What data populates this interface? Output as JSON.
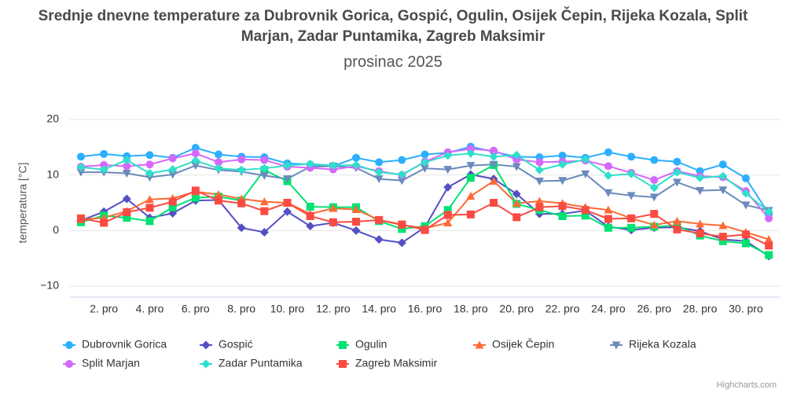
{
  "chart_data": {
    "type": "line",
    "title": "Srednje dnevne temperature za Dubrovnik Gorica, Gospić, Ogulin, Osijek Čepin, Rijeka Kozala, Split Marjan, Zadar Puntamika, Zagreb Maksimir",
    "subtitle": "prosinac 2025",
    "y_label": "temperatura [°C]",
    "credits": "Highcharts.com",
    "categories": [
      null,
      "2. pro",
      null,
      "4. pro",
      null,
      "6. pro",
      null,
      "8. pro",
      null,
      "10. pro",
      null,
      "12. pro",
      null,
      "14. pro",
      null,
      "16. pro",
      null,
      "18. pro",
      null,
      "20. pro",
      null,
      "22. pro",
      null,
      "24. pro",
      null,
      "26. pro",
      null,
      "28. pro",
      null,
      "30. pro",
      null
    ],
    "ylim": [
      -10,
      20
    ],
    "yticks": [
      {
        "value": -10,
        "label": "−10"
      },
      0,
      10,
      20
    ],
    "grid": true,
    "legend": "bottom",
    "series": [
      {
        "name": "Dubrovnik Gorica",
        "color": "#2caffe",
        "marker": "circle",
        "values": [
          13.3,
          13.8,
          13.4,
          13.6,
          13.1,
          14.9,
          13.7,
          13.3,
          13.2,
          12.1,
          11.9,
          11.6,
          13.1,
          12.3,
          12.7,
          13.7,
          14.0,
          15.1,
          14.2,
          13.3,
          13.2,
          13.5,
          13.1,
          14.1,
          13.3,
          12.7,
          12.4,
          10.7,
          11.9,
          9.4,
          3.0
        ]
      },
      {
        "name": "Gospić",
        "color": "#544fc5",
        "marker": "diamond",
        "values": [
          1.8,
          3.4,
          5.7,
          2.3,
          3.1,
          5.4,
          5.5,
          0.5,
          -0.3,
          3.4,
          0.8,
          1.4,
          0.0,
          -1.6,
          -2.2,
          0.6,
          7.8,
          10.1,
          9.3,
          6.6,
          3.0,
          3.0,
          3.6,
          0.7,
          0.1,
          0.5,
          0.6,
          -0.1,
          -1.6,
          -1.9,
          -4.6
        ]
      },
      {
        "name": "Ogulin",
        "color": "#00e272",
        "marker": "square",
        "values": [
          1.5,
          2.7,
          2.3,
          1.7,
          4.2,
          5.9,
          6.1,
          5.4,
          10.9,
          8.9,
          4.3,
          4.2,
          4.2,
          1.7,
          0.3,
          0.8,
          3.7,
          9.5,
          11.8,
          4.8,
          3.7,
          2.6,
          2.7,
          0.5,
          0.5,
          0.7,
          0.9,
          -0.9,
          -1.9,
          -2.3,
          -4.4
        ]
      },
      {
        "name": "Osijek Čepin",
        "color": "#fe6a35",
        "marker": "triangle",
        "values": [
          2.0,
          2.3,
          3.5,
          5.6,
          5.8,
          7.0,
          6.5,
          5.7,
          5.2,
          5.0,
          3.0,
          4.0,
          3.8,
          1.9,
          1.0,
          0.4,
          1.4,
          6.2,
          8.9,
          4.9,
          5.3,
          4.9,
          4.2,
          3.7,
          2.2,
          1.0,
          1.7,
          1.2,
          0.9,
          -0.3,
          -1.6
        ]
      },
      {
        "name": "Rijeka Kozala",
        "color": "#6b8abc",
        "marker": "triangle-down",
        "values": [
          10.5,
          10.5,
          10.3,
          9.6,
          10.1,
          11.7,
          10.9,
          10.6,
          9.9,
          9.3,
          11.5,
          11.6,
          11.3,
          9.3,
          9.0,
          11.2,
          11.0,
          11.7,
          11.9,
          11.5,
          8.9,
          9.0,
          10.2,
          6.8,
          6.3,
          6.0,
          8.7,
          7.2,
          7.3,
          4.6,
          3.6
        ]
      },
      {
        "name": "Split Marjan",
        "color": "#d568fb",
        "marker": "circle",
        "values": [
          11.5,
          11.8,
          11.6,
          11.9,
          13.0,
          13.9,
          12.3,
          12.8,
          12.7,
          11.5,
          11.3,
          11.0,
          11.6,
          10.7,
          10.0,
          12.4,
          14.1,
          14.7,
          14.4,
          12.8,
          12.3,
          12.4,
          12.6,
          11.6,
          10.4,
          9.1,
          10.7,
          9.8,
          9.6,
          7.1,
          2.2
        ]
      },
      {
        "name": "Zadar Puntamika",
        "color": "#2ee0ca",
        "marker": "diamond",
        "values": [
          11.4,
          11.0,
          12.7,
          10.3,
          11.0,
          12.6,
          11.2,
          10.9,
          11.2,
          11.7,
          12.0,
          11.7,
          11.8,
          10.5,
          10.1,
          12.3,
          13.5,
          13.9,
          13.3,
          13.6,
          10.9,
          11.9,
          12.8,
          9.9,
          10.2,
          7.7,
          10.5,
          9.5,
          9.8,
          6.7,
          3.4
        ]
      },
      {
        "name": "Zagreb Maksimir",
        "color": "#fa4b42",
        "marker": "square",
        "values": [
          2.2,
          1.4,
          3.3,
          4.1,
          5.2,
          7.2,
          5.4,
          4.9,
          3.5,
          5.0,
          2.6,
          1.5,
          1.6,
          1.9,
          1.1,
          0.1,
          2.8,
          2.9,
          5.0,
          2.4,
          4.2,
          4.4,
          3.7,
          2.1,
          2.2,
          3.0,
          0.2,
          -0.5,
          -1.1,
          -0.7,
          -2.7
        ]
      }
    ]
  }
}
